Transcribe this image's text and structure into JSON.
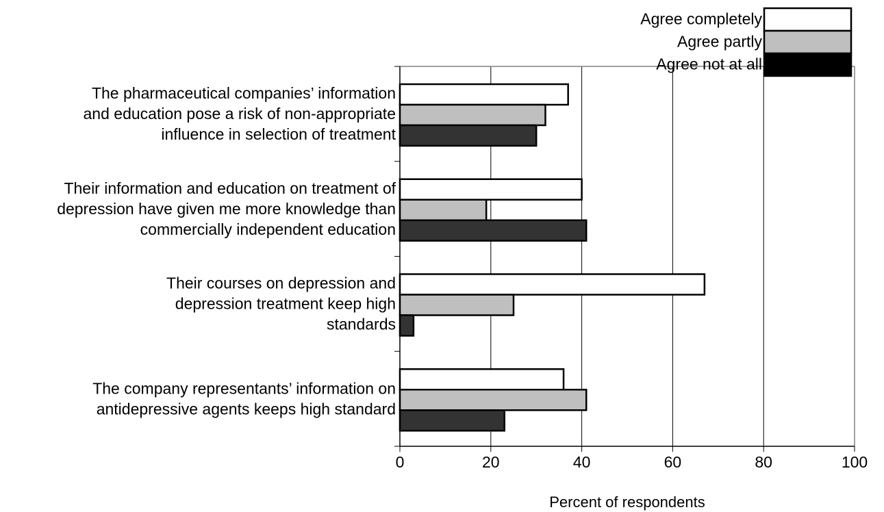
{
  "chart_data": {
    "type": "bar",
    "orientation": "horizontal",
    "title": "",
    "xlabel": "Percent of respondents",
    "ylabel": "",
    "xlim": [
      0,
      100
    ],
    "xticks": [
      "0",
      "20",
      "40",
      "60",
      "80",
      "100"
    ],
    "grid": "vertical",
    "legend_position": "top-right",
    "categories": [
      [
        "The pharmaceutical companies’ information",
        "and education pose a risk of non-appropriate",
        "influence in selection of treatment"
      ],
      [
        "Their information and education on treatment of",
        "depression have given me more knowledge than",
        "commercially independent education"
      ],
      [
        "Their courses on depression and",
        "depression treatment keep high",
        "standards"
      ],
      [
        "The company representants’ information on",
        "antidepressive agents keeps high standard"
      ]
    ],
    "series": [
      {
        "name": "Agree completely",
        "color": "#ffffff",
        "values": [
          37,
          40,
          67,
          36
        ]
      },
      {
        "name": "Agree partly",
        "color": "#bfbfbf",
        "values": [
          32,
          19,
          25,
          41
        ]
      },
      {
        "name": "Agree not at all",
        "color": "#333333",
        "values": [
          30,
          41,
          3,
          23
        ]
      }
    ],
    "legend_colors": [
      "#ffffff",
      "#bfbfbf",
      "#000000"
    ]
  }
}
